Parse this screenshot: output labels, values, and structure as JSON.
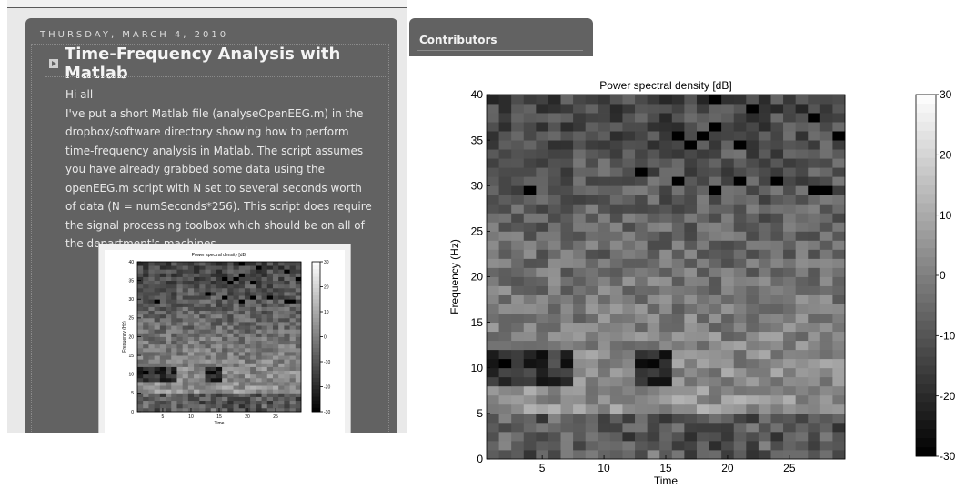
{
  "post": {
    "date": "THURSDAY, MARCH 4, 2010",
    "title": "Time-Frequency Analysis with Matlab",
    "greeting": "Hi all",
    "body": "I've put a short Matlab file (analyseOpenEEG.m) in the dropbox/software directory showing how to perform time-frequency analysis in Matlab. The script assumes you have already grabbed some data using the openEEG.m script with N set to several seconds worth of data (N = numSeconds*256). This script does require the signal processing toolbox which should be on all of the department's machines."
  },
  "sidebar": {
    "title": "Contributors"
  },
  "chart_data": {
    "type": "heatmap",
    "title": "Power spectral density [dB]",
    "xlabel": "Time",
    "ylabel": "Frequency (Hz)",
    "xlim": [
      0.5,
      29.5
    ],
    "ylim": [
      0,
      40
    ],
    "xticks": [
      5,
      10,
      15,
      20,
      25
    ],
    "yticks": [
      0,
      5,
      10,
      15,
      20,
      25,
      30,
      35,
      40
    ],
    "colorbar": {
      "range": [
        -30,
        30
      ],
      "ticks": [
        30,
        20,
        10,
        0,
        -10,
        -20,
        -30
      ]
    },
    "colormap": "gray"
  }
}
